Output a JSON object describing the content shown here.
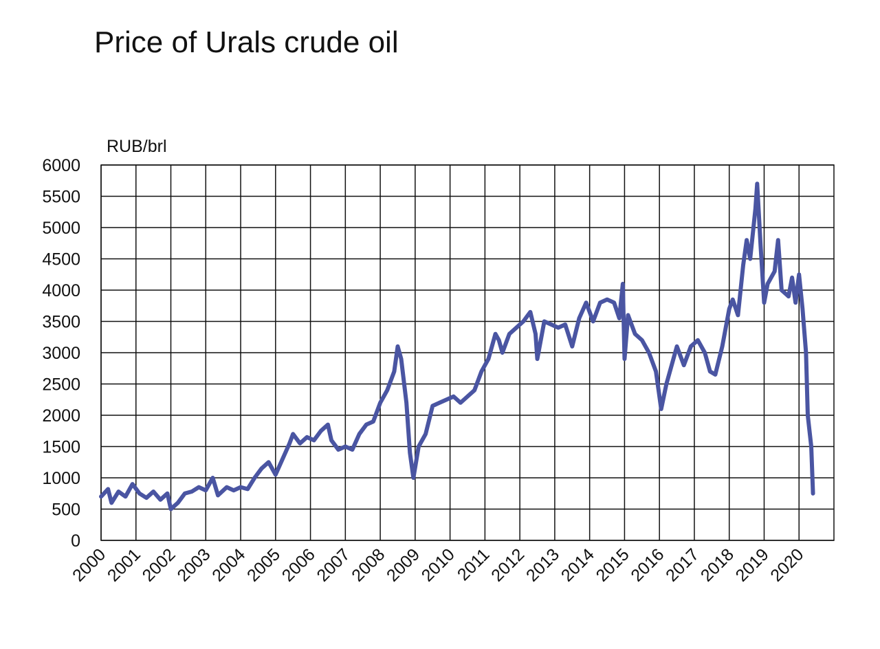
{
  "chart_data": {
    "type": "line",
    "title": "Price of Urals crude oil",
    "y_label": "RUB/brl",
    "x": [
      2000.0,
      2000.2,
      2000.3,
      2000.5,
      2000.7,
      2000.9,
      2001.1,
      2001.3,
      2001.5,
      2001.7,
      2001.9,
      2002.0,
      2002.2,
      2002.4,
      2002.6,
      2002.8,
      2003.0,
      2003.2,
      2003.35,
      2003.6,
      2003.8,
      2004.0,
      2004.2,
      2004.4,
      2004.6,
      2004.8,
      2005.0,
      2005.2,
      2005.4,
      2005.5,
      2005.7,
      2005.9,
      2006.1,
      2006.3,
      2006.5,
      2006.6,
      2006.8,
      2007.0,
      2007.2,
      2007.4,
      2007.6,
      2007.8,
      2008.0,
      2008.2,
      2008.4,
      2008.5,
      2008.6,
      2008.75,
      2008.85,
      2008.95,
      2009.1,
      2009.3,
      2009.5,
      2009.7,
      2009.9,
      2010.1,
      2010.3,
      2010.5,
      2010.7,
      2010.9,
      2011.1,
      2011.3,
      2011.4,
      2011.5,
      2011.7,
      2011.9,
      2012.1,
      2012.3,
      2012.45,
      2012.5,
      2012.7,
      2012.9,
      2013.1,
      2013.3,
      2013.5,
      2013.7,
      2013.9,
      2014.1,
      2014.3,
      2014.5,
      2014.7,
      2014.85,
      2014.95,
      2015.0,
      2015.1,
      2015.3,
      2015.5,
      2015.7,
      2015.9,
      2016.05,
      2016.2,
      2016.4,
      2016.5,
      2016.7,
      2016.9,
      2017.1,
      2017.3,
      2017.45,
      2017.6,
      2017.8,
      2018.0,
      2018.1,
      2018.25,
      2018.4,
      2018.5,
      2018.6,
      2018.75,
      2018.8,
      2018.9,
      2019.0,
      2019.1,
      2019.3,
      2019.4,
      2019.5,
      2019.7,
      2019.8,
      2019.9,
      2020.0,
      2020.1,
      2020.2,
      2020.25,
      2020.35,
      2020.4
    ],
    "series": [
      {
        "name": "Urals",
        "color": "#4a55a2",
        "values": [
          700,
          820,
          600,
          780,
          700,
          900,
          750,
          680,
          780,
          650,
          750,
          500,
          600,
          750,
          780,
          850,
          800,
          1000,
          720,
          850,
          800,
          850,
          820,
          1000,
          1150,
          1250,
          1050,
          1300,
          1550,
          1700,
          1550,
          1650,
          1600,
          1750,
          1850,
          1600,
          1450,
          1500,
          1450,
          1700,
          1850,
          1900,
          2200,
          2400,
          2700,
          3100,
          2900,
          2200,
          1400,
          1000,
          1500,
          1700,
          2150,
          2200,
          2250,
          2300,
          2200,
          2300,
          2400,
          2700,
          2900,
          3300,
          3200,
          3000,
          3300,
          3400,
          3500,
          3650,
          3300,
          2900,
          3500,
          3450,
          3400,
          3450,
          3100,
          3550,
          3800,
          3500,
          3800,
          3850,
          3800,
          3550,
          4100,
          2900,
          3600,
          3300,
          3200,
          3000,
          2700,
          2100,
          2500,
          2900,
          3100,
          2800,
          3100,
          3200,
          3000,
          2700,
          2650,
          3100,
          3700,
          3850,
          3600,
          4400,
          4800,
          4500,
          5300,
          5700,
          4700,
          3800,
          4100,
          4300,
          4800,
          4000,
          3900,
          4200,
          3800,
          4250,
          3700,
          3000,
          2000,
          1500,
          750
        ]
      }
    ],
    "xlim": [
      2000,
      2021
    ],
    "xticks": [
      2000,
      2001,
      2002,
      2003,
      2004,
      2005,
      2006,
      2007,
      2008,
      2009,
      2010,
      2011,
      2012,
      2013,
      2014,
      2015,
      2016,
      2017,
      2018,
      2019,
      2020
    ],
    "ylim": [
      0,
      6000
    ],
    "yticks": [
      0,
      500,
      1000,
      1500,
      2000,
      2500,
      3000,
      3500,
      4000,
      4500,
      5000,
      5500,
      6000
    ],
    "grid": true
  }
}
